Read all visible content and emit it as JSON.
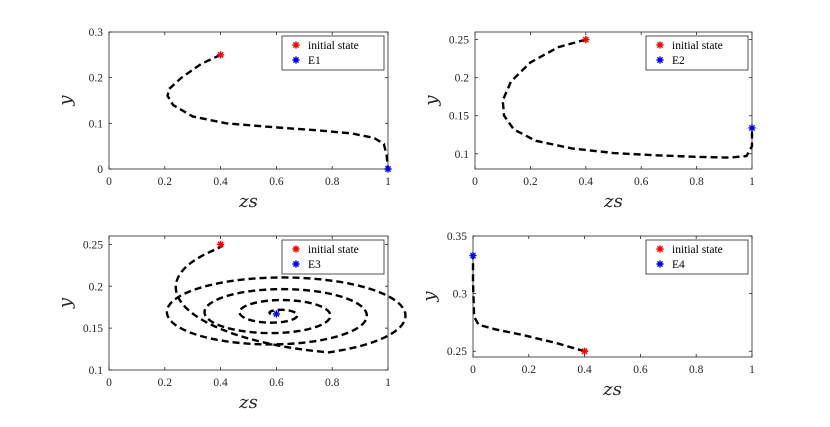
{
  "chart_data": [
    {
      "type": "line",
      "xlabel": "zs",
      "ylabel": "y",
      "xlim": [
        0,
        1
      ],
      "ylim": [
        0,
        0.3
      ],
      "xticks": [
        "0",
        "0.2",
        "0.4",
        "0.6",
        "0.8",
        "1"
      ],
      "yticks": [
        "0",
        "0.1",
        "0.2",
        "0.3"
      ],
      "legend_position": "top-right",
      "series": [
        {
          "style": "dashed",
          "color": "#000000",
          "x": [
            0.4,
            0.33,
            0.26,
            0.215,
            0.21,
            0.23,
            0.3,
            0.42,
            0.58,
            0.74,
            0.87,
            0.95,
            0.985,
            0.995,
            1.0
          ],
          "y": [
            0.25,
            0.23,
            0.2,
            0.175,
            0.16,
            0.14,
            0.115,
            0.1,
            0.092,
            0.085,
            0.078,
            0.068,
            0.055,
            0.03,
            0.0
          ]
        }
      ],
      "markers": [
        {
          "name": "initial state",
          "x": 0.4,
          "y": 0.25,
          "color": "#ff0000"
        },
        {
          "name": "E1",
          "x": 1.0,
          "y": 0.0,
          "color": "#0000ff"
        }
      ]
    },
    {
      "type": "line",
      "xlabel": "zs",
      "ylabel": "y",
      "xlim": [
        0,
        1
      ],
      "ylim": [
        0.08,
        0.26
      ],
      "xticks": [
        "0",
        "0.2",
        "0.4",
        "0.6",
        "0.8",
        "1"
      ],
      "yticks": [
        "0.1",
        "0.15",
        "0.2",
        "0.25"
      ],
      "legend_position": "top-right",
      "series": [
        {
          "style": "dashed",
          "color": "#000000",
          "x": [
            0.4,
            0.3,
            0.2,
            0.13,
            0.1,
            0.105,
            0.14,
            0.22,
            0.35,
            0.5,
            0.65,
            0.8,
            0.92,
            0.98,
            1.0,
            1.0
          ],
          "y": [
            0.25,
            0.24,
            0.22,
            0.195,
            0.17,
            0.15,
            0.132,
            0.117,
            0.107,
            0.101,
            0.098,
            0.096,
            0.095,
            0.097,
            0.11,
            0.134
          ]
        }
      ],
      "markers": [
        {
          "name": "initial state",
          "x": 0.4,
          "y": 0.25,
          "color": "#ff0000"
        },
        {
          "name": "E2",
          "x": 1.0,
          "y": 0.134,
          "color": "#0000ff"
        }
      ]
    },
    {
      "type": "line",
      "xlabel": "zs",
      "ylabel": "y",
      "xlim": [
        0,
        1
      ],
      "ylim": [
        0.1,
        0.26
      ],
      "xticks": [
        "0",
        "0.2",
        "0.4",
        "0.6",
        "0.8",
        "1"
      ],
      "yticks": [
        "0.1",
        "0.15",
        "0.2",
        "0.25"
      ],
      "legend_position": "top-right",
      "spiral": {
        "start": [
          0.4,
          0.25
        ],
        "center": [
          0.6,
          0.167
        ],
        "turns": 4.5,
        "rx_max": 0.57,
        "ry_max": 0.058
      },
      "markers": [
        {
          "name": "initial state",
          "x": 0.4,
          "y": 0.25,
          "color": "#ff0000"
        },
        {
          "name": "E3",
          "x": 0.6,
          "y": 0.167,
          "color": "#0000ff"
        }
      ]
    },
    {
      "type": "line",
      "xlabel": "zs",
      "ylabel": "y",
      "xlim": [
        0,
        1
      ],
      "ylim": [
        0.245,
        0.35
      ],
      "xticks": [
        "0",
        "0.2",
        "0.4",
        "0.6",
        "0.8",
        "1"
      ],
      "yticks": [
        "0.25",
        "0.3",
        "0.35"
      ],
      "legend_position": "top-right",
      "series": [
        {
          "style": "dashed",
          "color": "#000000",
          "x": [
            0.4,
            0.3,
            0.18,
            0.08,
            0.02,
            0.004,
            0.0,
            0.0
          ],
          "y": [
            0.25,
            0.257,
            0.264,
            0.269,
            0.273,
            0.28,
            0.31,
            0.333
          ]
        }
      ],
      "markers": [
        {
          "name": "initial state",
          "x": 0.4,
          "y": 0.25,
          "color": "#ff0000"
        },
        {
          "name": "E4",
          "x": 0.0,
          "y": 0.333,
          "color": "#0000ff"
        }
      ]
    }
  ]
}
